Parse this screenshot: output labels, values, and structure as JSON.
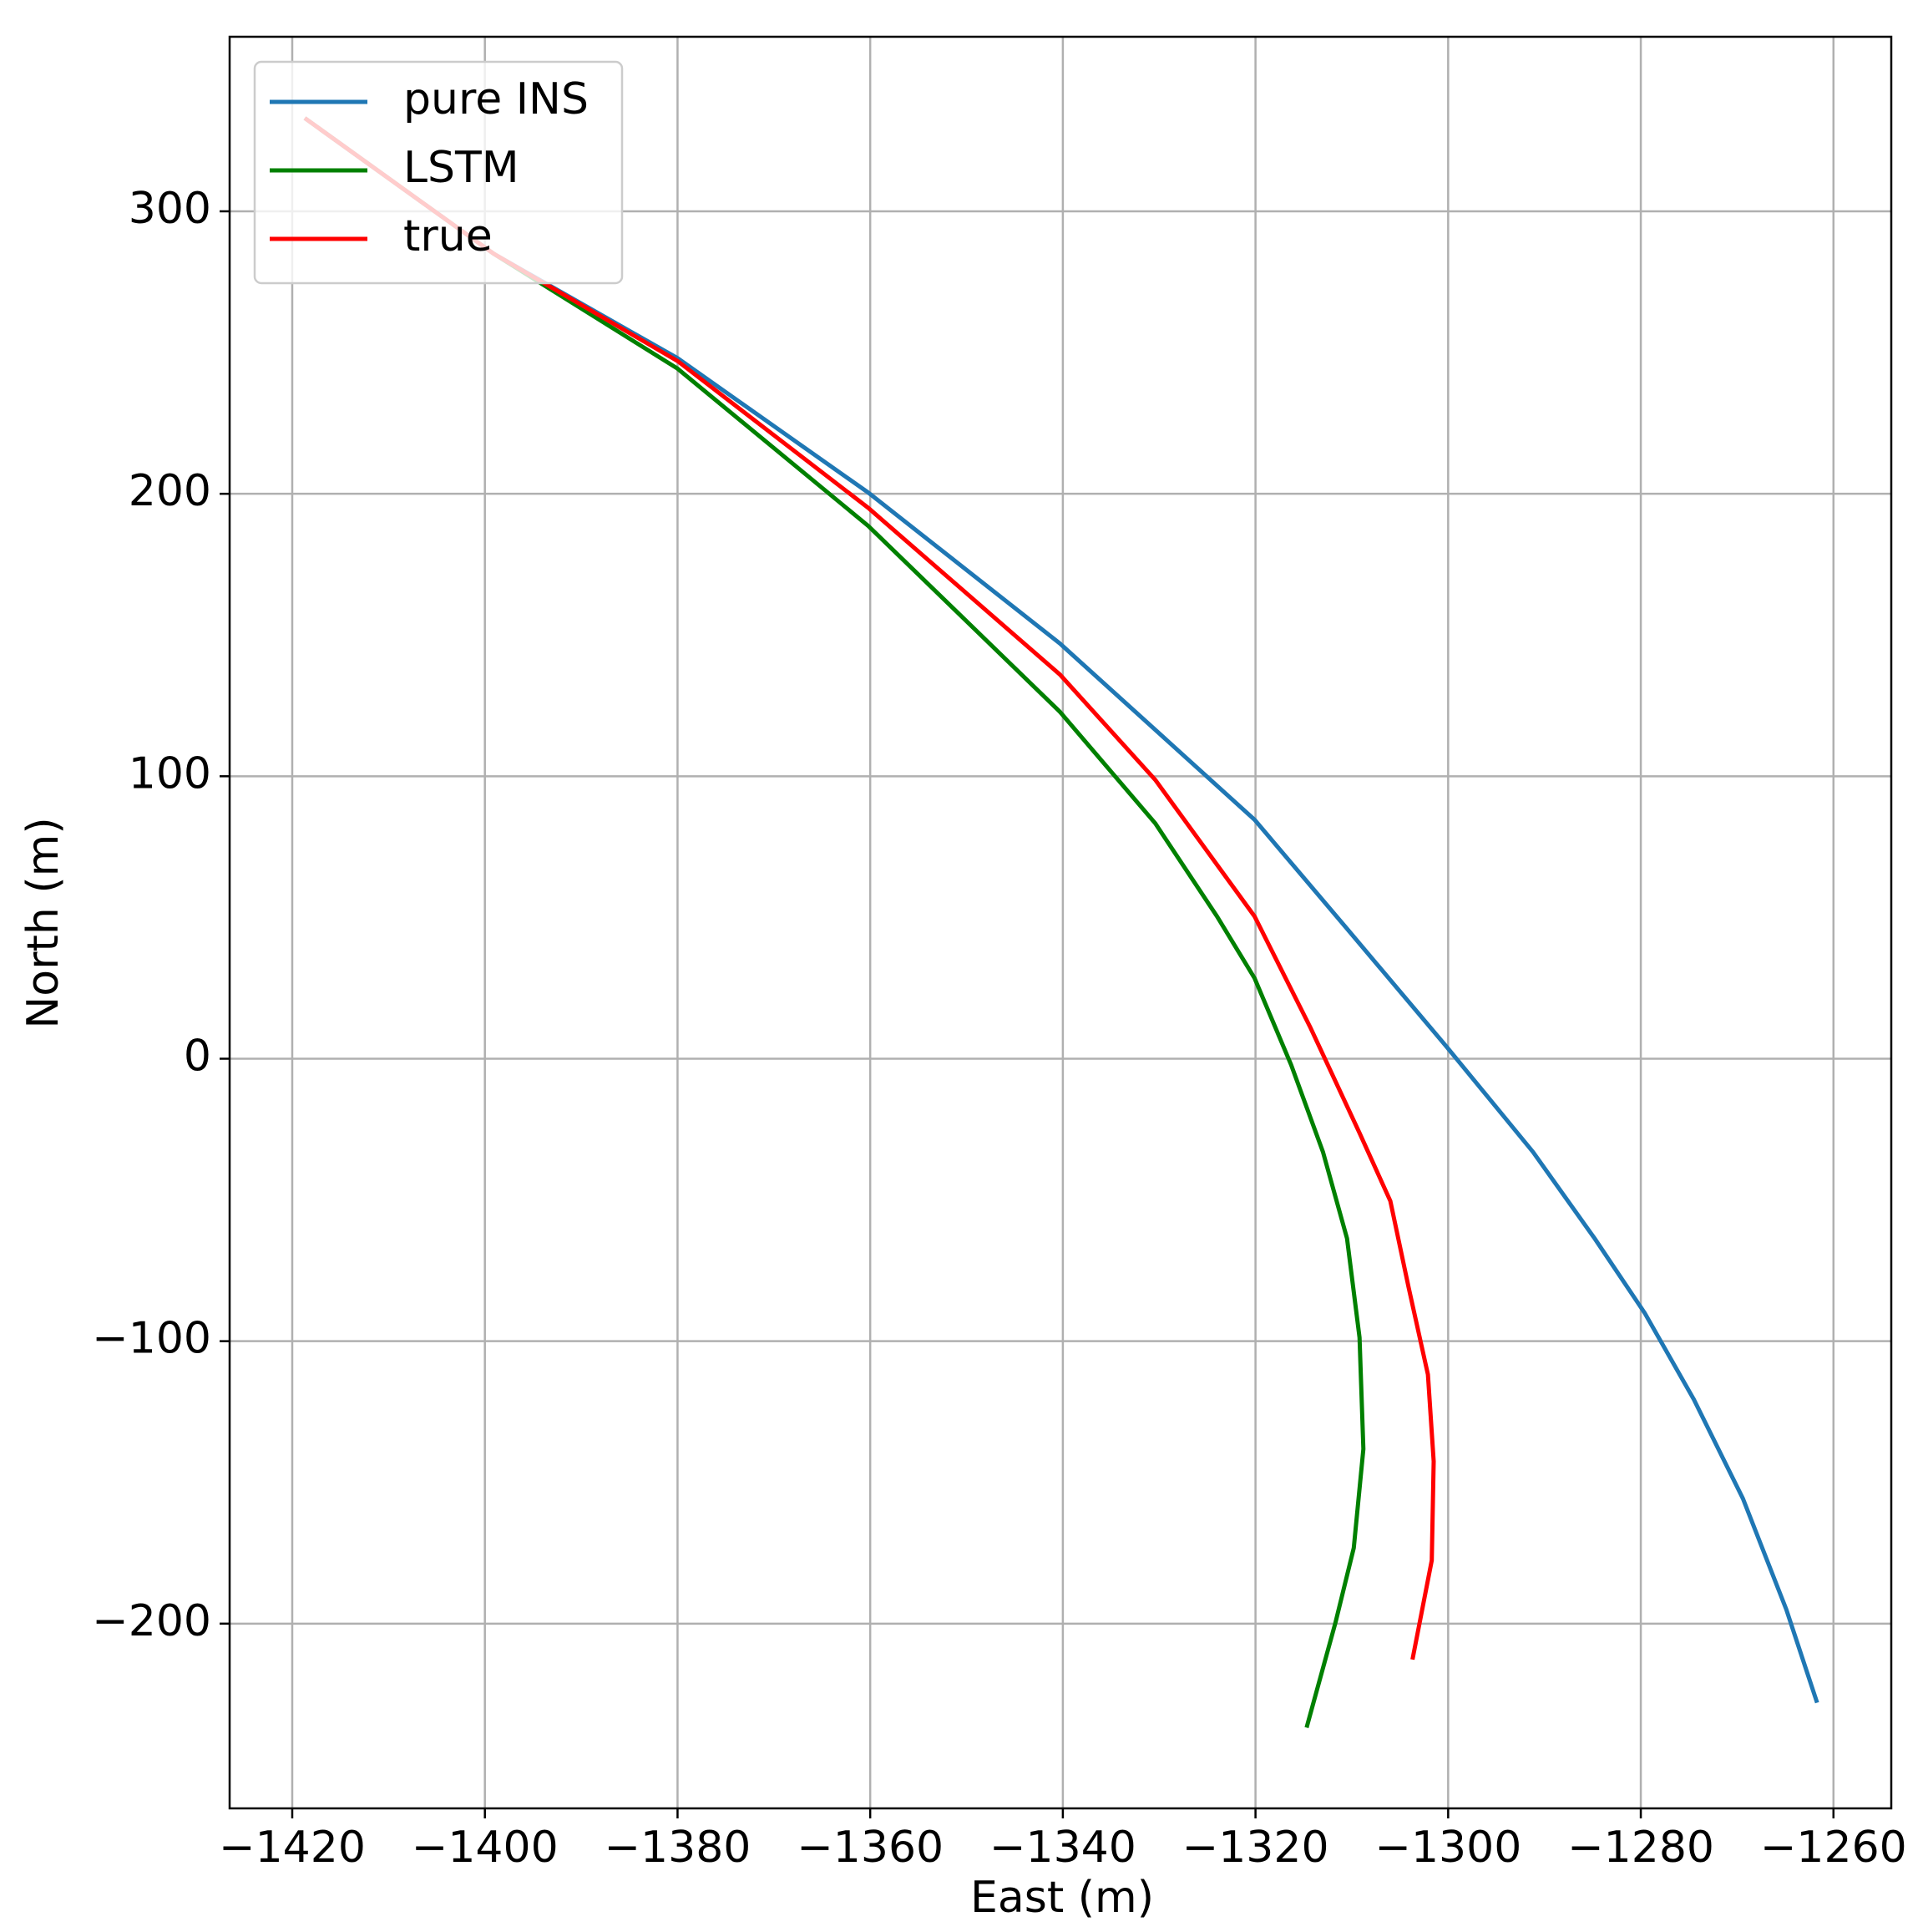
{
  "chart_data": {
    "type": "line",
    "xlabel": "East (m)",
    "ylabel": "North (m)",
    "xlim": [
      -1426.5,
      -1254
    ],
    "ylim": [
      -265.4,
      361.8
    ],
    "xticks": [
      {
        "value": -1420,
        "label": "−1420"
      },
      {
        "value": -1400,
        "label": "−1400"
      },
      {
        "value": -1380,
        "label": "−1380"
      },
      {
        "value": -1360,
        "label": "−1360"
      },
      {
        "value": -1340,
        "label": "−1340"
      },
      {
        "value": -1320,
        "label": "−1320"
      },
      {
        "value": -1300,
        "label": "−1300"
      },
      {
        "value": -1280,
        "label": "−1280"
      },
      {
        "value": -1260,
        "label": "−1260"
      }
    ],
    "yticks": [
      {
        "value": -200,
        "label": "−200"
      },
      {
        "value": -100,
        "label": "−100"
      },
      0,
      100,
      200,
      300
    ],
    "grid": true,
    "legend": "upper left",
    "series": [
      {
        "name": "pure INS",
        "color": "#1f77b4",
        "x": [
          -1418.7,
          -1399.1,
          -1380,
          -1360.2,
          -1340.3,
          -1320.1,
          -1310.5,
          -1300.2,
          -1291.2,
          -1284.8,
          -1279.6,
          -1274.5,
          -1269.4,
          -1264.9,
          -1261.7
        ],
        "values": [
          333,
          285,
          248,
          200.4,
          147,
          84.6,
          46,
          4.4,
          -33,
          -63.6,
          -90,
          -120.6,
          -155.7,
          -195,
          -228
        ]
      },
      {
        "name": "LSTM",
        "color": "#008000",
        "x": [
          -1418.7,
          -1399.1,
          -1380,
          -1360.2,
          -1340.3,
          -1330.4,
          -1324,
          -1320.1,
          -1316.3,
          -1313,
          -1310.5,
          -1309.2,
          -1308.8,
          -1309.8,
          -1311.7,
          -1314.7
        ],
        "values": [
          333,
          285,
          244.3,
          188.6,
          122.8,
          83.3,
          50.4,
          28.5,
          -2.2,
          -33,
          -63.6,
          -98.7,
          -138.2,
          -173.2,
          -199.6,
          -236.8
        ]
      },
      {
        "name": "true",
        "color": "#ff0000",
        "x": [
          -1418.7,
          -1399.1,
          -1380,
          -1360.2,
          -1340.3,
          -1330.4,
          -1320.1,
          -1314.3,
          -1309.2,
          -1306,
          -1304.1,
          -1302.1,
          -1301.5,
          -1301.7,
          -1303.7
        ],
        "values": [
          333,
          285,
          247,
          195,
          136,
          98.7,
          50.4,
          11,
          -26.3,
          -50.4,
          -81,
          -111.8,
          -142.5,
          -177.6,
          -212.7
        ]
      }
    ]
  }
}
